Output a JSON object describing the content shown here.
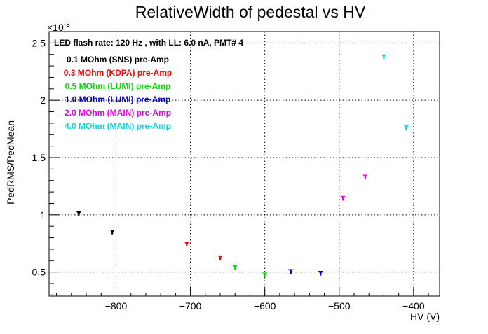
{
  "chart_data": {
    "type": "scatter",
    "title": "RelativeWidth of pedestal vs HV",
    "xlabel": "HV (V)",
    "ylabel": "PedRMS/PedMean",
    "y_exponent_label": "×10",
    "y_exponent_power": "-3",
    "xlim": [
      -890,
      -365
    ],
    "ylim": [
      0.29,
      2.6
    ],
    "x_ticks": [
      -800,
      -700,
      -600,
      -500,
      -400
    ],
    "x_tick_labels": [
      "−800",
      "−700",
      "−600",
      "−500",
      "−400"
    ],
    "y_ticks": [
      0.5,
      1.0,
      1.5,
      2.0,
      2.5
    ],
    "y_tick_labels": [
      "0.5",
      "1",
      "1.5",
      "2",
      "2.5"
    ],
    "grid": true,
    "legend_position": "top-left",
    "info_text": "LED flash rate: 120 Hz , with LL: 6.0 nA, PMT# 4",
    "series": [
      {
        "name": "0.1 MOhm (SNS) pre-Amp",
        "color": "#000000",
        "x": [
          -850,
          -805
        ],
        "y": [
          1.01,
          0.85
        ]
      },
      {
        "name": "0.3 MOhm (KDPA) pre-Amp",
        "color": "#ff0000",
        "x": [
          -705,
          -660
        ],
        "y": [
          0.745,
          0.625
        ]
      },
      {
        "name": "0.5 MOhm (LUMI) pre-Amp",
        "color": "#00dd00",
        "x": [
          -640,
          -600
        ],
        "y": [
          0.54,
          0.475
        ]
      },
      {
        "name": "1.0 MOhm (LUMI) pre-Amp",
        "color": "#0000cc",
        "x": [
          -565,
          -525
        ],
        "y": [
          0.505,
          0.49
        ]
      },
      {
        "name": "2.0 MOhm (MAIN) pre-Amp",
        "color": "#ee00ee",
        "x": [
          -495,
          -465
        ],
        "y": [
          1.145,
          1.33
        ]
      },
      {
        "name": "4.0 MOhm (MAIN) pre-Amp",
        "color": "#00dddd",
        "x": [
          -440,
          -410
        ],
        "y": [
          2.38,
          1.76
        ]
      }
    ]
  }
}
